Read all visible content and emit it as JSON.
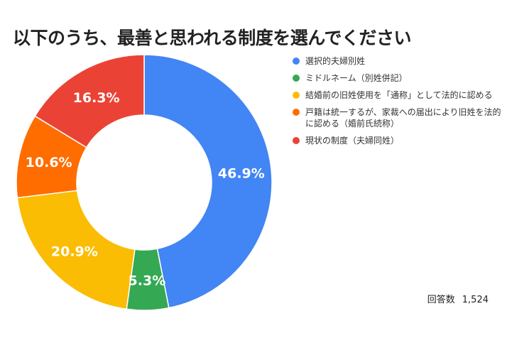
{
  "chart_data": {
    "type": "pie",
    "title": "以下のうち、最善と思われる制度を選んでください",
    "donut": true,
    "legend_position": "right",
    "slices": [
      {
        "label": "選択的夫婦別姓",
        "value": 46.9,
        "value_label": "46.9%",
        "color": "#4285f4"
      },
      {
        "label": "ミドルネーム（別姓併記）",
        "value": 5.3,
        "value_label": "5.3%",
        "color": "#34a853"
      },
      {
        "label": "結婚前の旧姓使用を「通称」として法的に認める",
        "value": 20.9,
        "value_label": "20.9%",
        "color": "#fbbc04"
      },
      {
        "label": "戸籍は統一するが、家裁への届出により旧姓を法的に認める（婚前氏続称）",
        "value": 10.6,
        "value_label": "10.6%",
        "color": "#ff6d01"
      },
      {
        "label": "現状の制度（夫婦同姓）",
        "value": 16.3,
        "value_label": "16.3%",
        "color": "#ea4335"
      }
    ]
  },
  "respondents": {
    "label": "回答数",
    "value": "1,524"
  }
}
